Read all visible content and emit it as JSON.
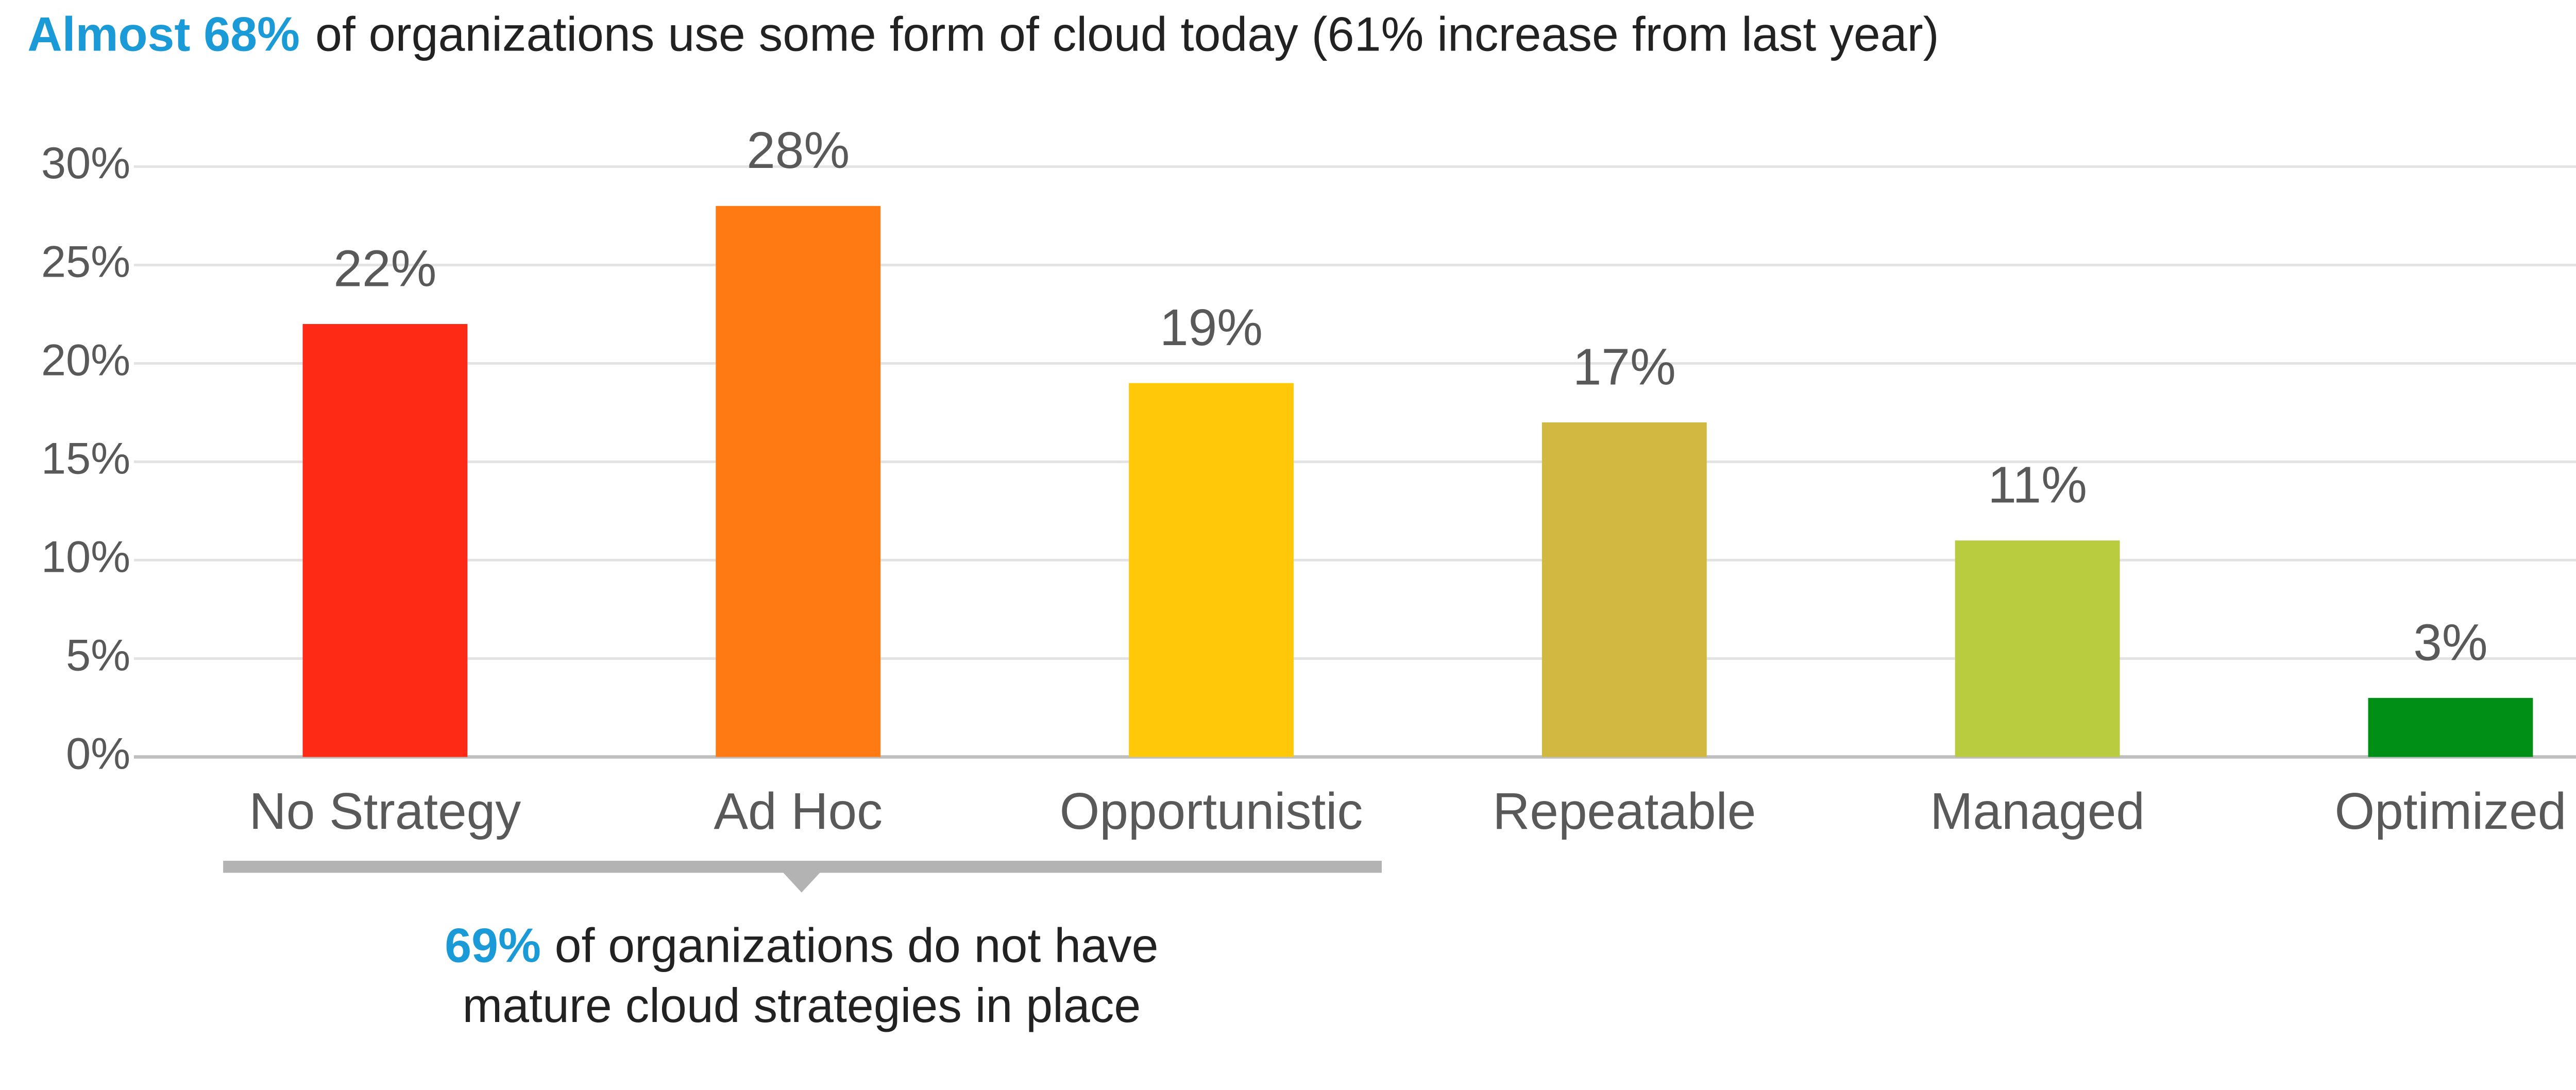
{
  "chart_data": {
    "type": "bar",
    "title_highlight": "Almost 68%",
    "title": "of organizations use some form of cloud today (61% increase from last year)",
    "categories": [
      "No Strategy",
      "Ad Hoc",
      "Opportunistic",
      "Repeatable",
      "Managed",
      "Optimized"
    ],
    "values": [
      22,
      28,
      19,
      17,
      11,
      3
    ],
    "value_labels": [
      "22%",
      "28%",
      "19%",
      "17%",
      "11%",
      "3%"
    ],
    "colors": [
      "#ff2a16",
      "#ff7a13",
      "#ffc90a",
      "#d1b941",
      "#b9cb3f",
      "#008f16"
    ],
    "ylim": [
      0,
      30
    ],
    "yticks": [
      {
        "value": 0,
        "label": "0%"
      },
      {
        "value": 5,
        "label": "5%"
      },
      {
        "value": 10,
        "label": "10%"
      },
      {
        "value": 15,
        "label": "15%"
      },
      {
        "value": 20,
        "label": "20%"
      },
      {
        "value": 25,
        "label": "25%"
      },
      {
        "value": 30,
        "label": "30%"
      }
    ],
    "grid": true,
    "annotation_highlight": "69%",
    "annotation_line1": "of organizations do not have",
    "annotation_line2": "mature cloud strategies in place"
  }
}
